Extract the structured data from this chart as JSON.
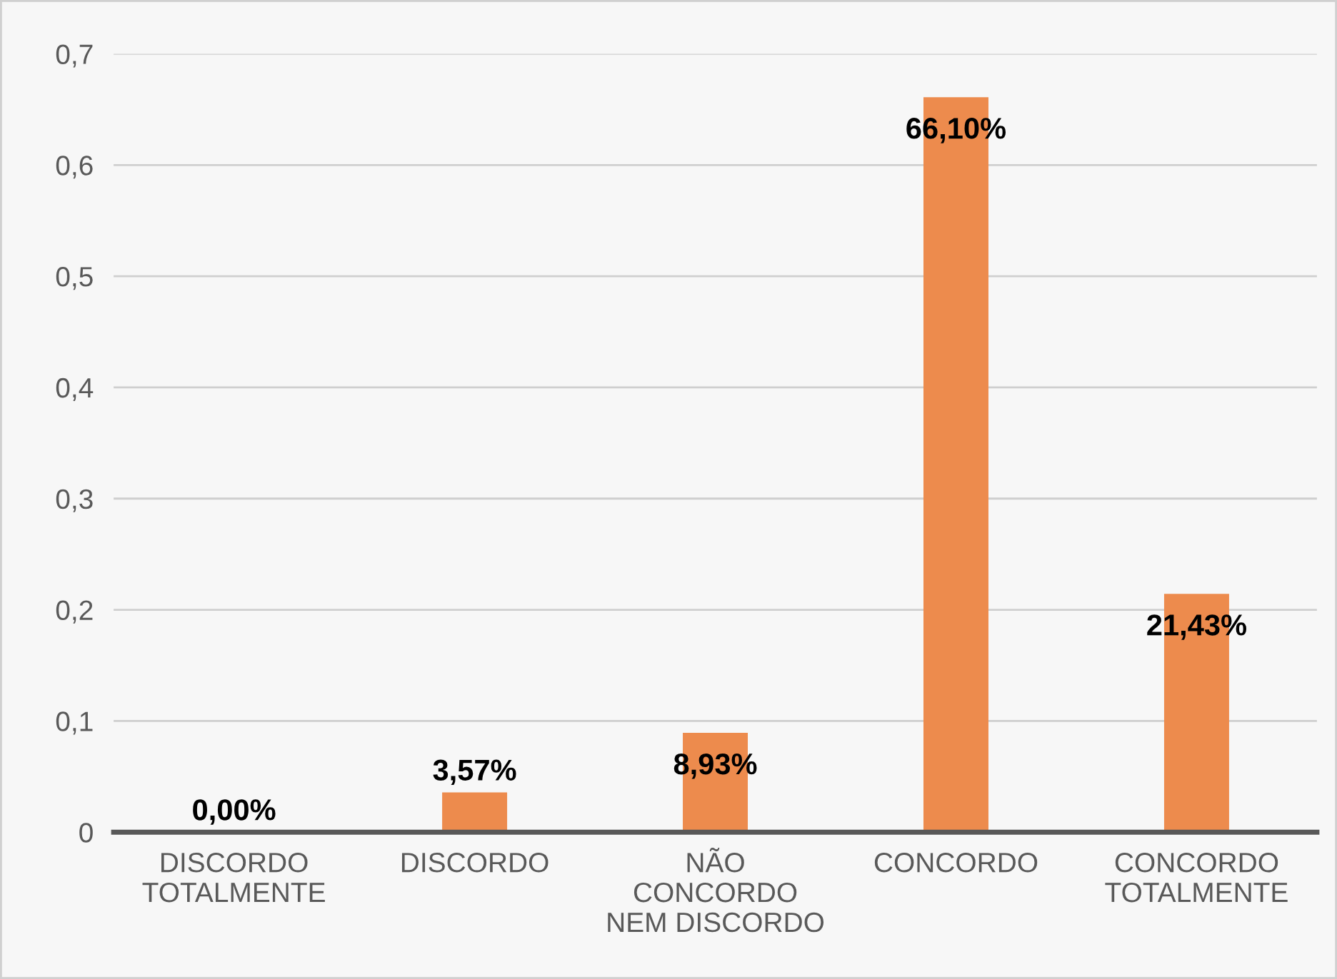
{
  "chart_data": {
    "type": "bar",
    "categories": [
      "DISCORDO\nTOTALMENTE",
      "DISCORDO",
      "NÃO\nCONCORDO\nNEM DISCORDO",
      "CONCORDO",
      "CONCORDO\nTOTALMENTE"
    ],
    "values": [
      0,
      0.0357,
      0.0893,
      0.661,
      0.2143
    ],
    "value_labels": [
      "0,00%",
      "3,57%",
      "8,93%",
      "66,10%",
      "21,43%"
    ],
    "color": "#ed8b4d",
    "ylim": [
      0,
      0.7
    ],
    "yticks": [
      0,
      {
        "value": 0.1,
        "label": "0,1"
      },
      {
        "value": 0.2,
        "label": "0,2"
      },
      {
        "value": 0.3,
        "label": "0,3"
      },
      {
        "value": 0.4,
        "label": "0,4"
      },
      {
        "value": 0.5,
        "label": "0,5"
      },
      {
        "value": 0.6,
        "label": "0,6"
      },
      {
        "value": 0.7,
        "label": "0,7"
      }
    ],
    "grid": "y",
    "legend": false
  }
}
